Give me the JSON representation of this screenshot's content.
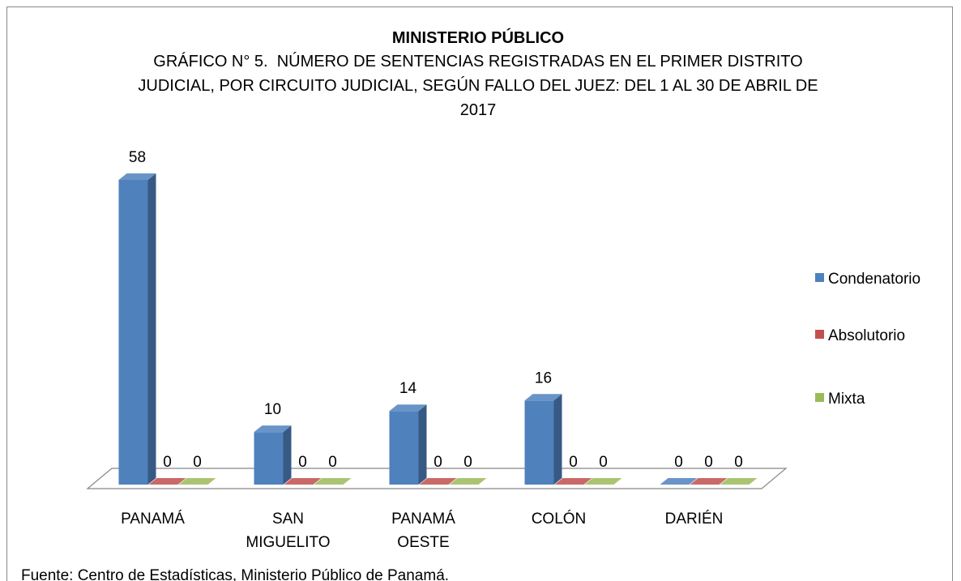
{
  "chart_data": {
    "type": "bar3d",
    "title": "MINISTERIO PÚBLICO",
    "subtitle": "GRÁFICO N° 5.  NÚMERO DE SENTENCIAS REGISTRADAS EN EL PRIMER DISTRITO JUDICIAL, POR CIRCUITO JUDICIAL, SEGÚN FALLO DEL JUEZ: DEL 1 AL 30 DE ABRIL DE 2017",
    "categories": [
      "PANAMÁ",
      "SAN MIGUELITO",
      "PANAMÁ OESTE",
      "COLÓN",
      "DARIÉN"
    ],
    "series": [
      {
        "name": "Condenatorio",
        "color": "#4f81bd",
        "values": [
          58,
          10,
          14,
          16,
          0
        ]
      },
      {
        "name": "Absolutorio",
        "color": "#c0504d",
        "values": [
          0,
          0,
          0,
          0,
          0
        ]
      },
      {
        "name": "Mixta",
        "color": "#9bbb59",
        "values": [
          0,
          0,
          0,
          0,
          0
        ]
      }
    ],
    "legend": "right",
    "source": "Fuente: Centro de Estadísticas, Ministerio Público de Panamá."
  }
}
